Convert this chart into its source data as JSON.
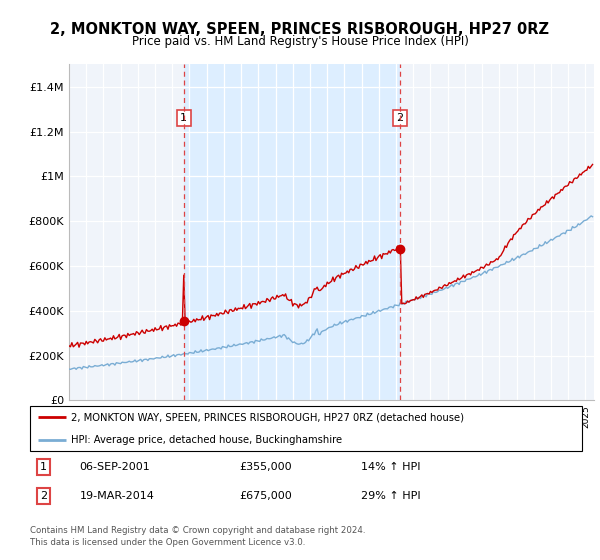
{
  "title": "2, MONKTON WAY, SPEEN, PRINCES RISBOROUGH, HP27 0RZ",
  "subtitle": "Price paid vs. HM Land Registry's House Price Index (HPI)",
  "legend_line1": "2, MONKTON WAY, SPEEN, PRINCES RISBOROUGH, HP27 0RZ (detached house)",
  "legend_line2": "HPI: Average price, detached house, Buckinghamshire",
  "sale1_date": "06-SEP-2001",
  "sale1_price": "£355,000",
  "sale1_hpi": "14% ↑ HPI",
  "sale1_year": 2001.67,
  "sale1_value": 355000,
  "sale2_date": "19-MAR-2014",
  "sale2_price": "£675,000",
  "sale2_hpi": "29% ↑ HPI",
  "sale2_year": 2014.21,
  "sale2_value": 675000,
  "footer1": "Contains HM Land Registry data © Crown copyright and database right 2024.",
  "footer2": "This data is licensed under the Open Government Licence v3.0.",
  "red_color": "#cc0000",
  "blue_color": "#7aadd4",
  "shade_color": "#ddeeff",
  "dashed_color": "#dd4444",
  "background_color": "#f0f4fa",
  "grid_color": "#cccccc",
  "ylim": [
    0,
    1500000
  ],
  "yticks": [
    0,
    200000,
    400000,
    600000,
    800000,
    1000000,
    1200000,
    1400000
  ],
  "ytick_labels": [
    "£0",
    "£200K",
    "£400K",
    "£600K",
    "£800K",
    "£1M",
    "£1.2M",
    "£1.4M"
  ],
  "xmin": 1995,
  "xmax": 2025.5
}
